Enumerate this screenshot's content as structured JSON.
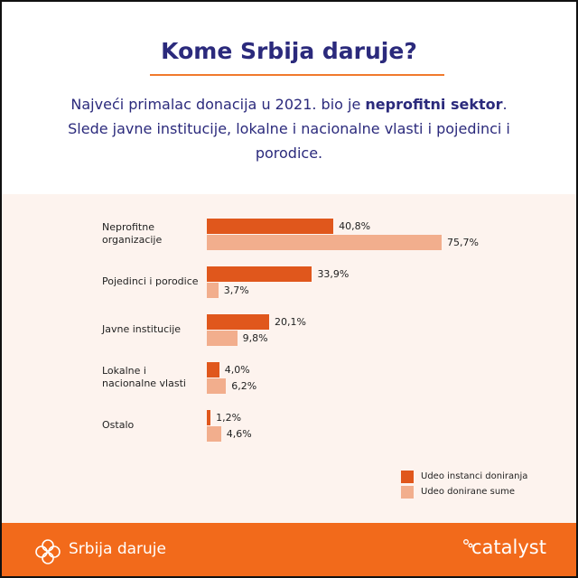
{
  "chart_data": {
    "type": "bar",
    "orientation": "horizontal",
    "title": "Kome Srbija daruje?",
    "subtitle": [
      "Najveći primalac donacija u 2021. bio je ",
      "neprofitni sektor",
      ". Slede javne institucije, lokalne i nacionalne vlasti i pojedinci i porodice."
    ],
    "categories": [
      "Neprofitne\norganizacije",
      "Pojedinci i porodice",
      "Javne institucije",
      "Lokalne i\nnacionalne vlasti",
      "Ostalo"
    ],
    "series": [
      {
        "name": "Udeo instanci doniranja",
        "color": "#e0571c",
        "values": [
          40.8,
          33.9,
          20.1,
          4.0,
          1.2
        ],
        "value_labels": [
          "40,8%",
          "33,9%",
          "20,1%",
          "4,0%",
          "1,2%"
        ]
      },
      {
        "name": "Udeo donirane sume",
        "color": "#f2ae8d",
        "values": [
          75.7,
          3.7,
          9.8,
          6.2,
          4.6
        ],
        "value_labels": [
          "75,7%",
          "3,7%",
          "9,8%",
          "6,2%",
          "4,6%"
        ]
      }
    ],
    "legend": "bottom-right"
  },
  "footer": {
    "brand": "Srbija daruje",
    "partner": "catalyst"
  }
}
